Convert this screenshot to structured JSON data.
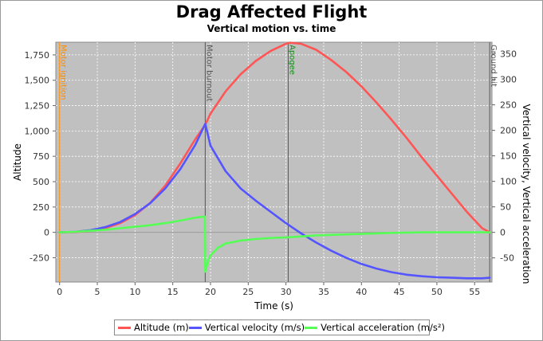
{
  "chart_data": {
    "type": "line",
    "title": "Drag Affected Flight",
    "subtitle": "Vertical motion vs. time",
    "xlabel": "Time (s)",
    "ylabel_left": "Altitude",
    "ylabel_right": "Vertical velocity, Vertical acceleration",
    "xlim": [
      -0.5,
      57.3
    ],
    "ylim_left": [
      -490,
      1875
    ],
    "ylim_right": [
      -97.4,
      372.7
    ],
    "x_ticks": [
      "0",
      "5",
      "10",
      "15",
      "20",
      "25",
      "30",
      "35",
      "40",
      "45",
      "50",
      "55"
    ],
    "left_ticks": [
      "-250",
      "0",
      "250",
      "500",
      "750",
      "1,000",
      "1,250",
      "1,500",
      "1,750"
    ],
    "right_ticks": [
      "-50",
      "0",
      "50",
      "100",
      "150",
      "200",
      "250",
      "300",
      "350"
    ],
    "grid": true,
    "legend_position": "bottom",
    "series": [
      {
        "name": "Altitude (m)",
        "axis": "left",
        "color": "#ff5555",
        "x": [
          0,
          2,
          4,
          6,
          8,
          10,
          12,
          14,
          16,
          18,
          19.3,
          20,
          22,
          24,
          26,
          28,
          30,
          30.5,
          32,
          34,
          36,
          38,
          40,
          42,
          44,
          46,
          48,
          50,
          52,
          54,
          56,
          57
        ],
        "y": [
          0,
          3,
          15,
          40,
          90,
          170,
          290,
          460,
          680,
          920,
          1060,
          1170,
          1390,
          1560,
          1690,
          1790,
          1860,
          1870,
          1860,
          1800,
          1700,
          1580,
          1440,
          1280,
          1110,
          930,
          740,
          560,
          380,
          200,
          40,
          0
        ]
      },
      {
        "name": "Vertical velocity (m/s)",
        "axis": "right",
        "color": "#5555ff",
        "x": [
          0,
          2,
          4,
          6,
          8,
          10,
          12,
          14,
          16,
          18,
          19.3,
          20,
          22,
          24,
          26,
          28,
          30,
          32,
          34,
          36,
          38,
          40,
          42,
          44,
          46,
          48,
          50,
          52,
          54,
          56,
          57
        ],
        "y": [
          0,
          1,
          4,
          10,
          20,
          36,
          57,
          86,
          124,
          172,
          213,
          170,
          120,
          86,
          62,
          40,
          18,
          -2,
          -20,
          -36,
          -50,
          -62,
          -71,
          -78,
          -83,
          -86,
          -88,
          -89,
          -90,
          -90,
          -89
        ]
      },
      {
        "name": "Vertical acceleration (m/s²)",
        "axis": "right",
        "color": "#55ff55",
        "x": [
          0,
          2,
          4,
          6,
          8,
          10,
          12,
          14,
          16,
          18,
          19.25,
          19.3,
          19.6,
          20,
          21,
          22,
          24,
          26,
          28,
          30,
          32,
          34,
          36,
          40,
          44,
          48,
          52,
          56,
          57
        ],
        "y": [
          0,
          1,
          3,
          5,
          8,
          11,
          14,
          18,
          23,
          29,
          31,
          -77,
          -60,
          -45,
          -30,
          -22,
          -16,
          -13,
          -11,
          -10,
          -8,
          -6,
          -5,
          -3,
          -1,
          0,
          0,
          0,
          0
        ]
      }
    ],
    "markers": [
      {
        "label": "Motor ignition",
        "x": 0,
        "color": "#ff8c00"
      },
      {
        "label": "Motor burnout",
        "x": 19.3,
        "color": "#555555"
      },
      {
        "label": "Apogee",
        "x": 30.3,
        "color": "#1a8a1a"
      },
      {
        "label": "Ground hit",
        "x": 57,
        "color": "#555555"
      }
    ]
  }
}
